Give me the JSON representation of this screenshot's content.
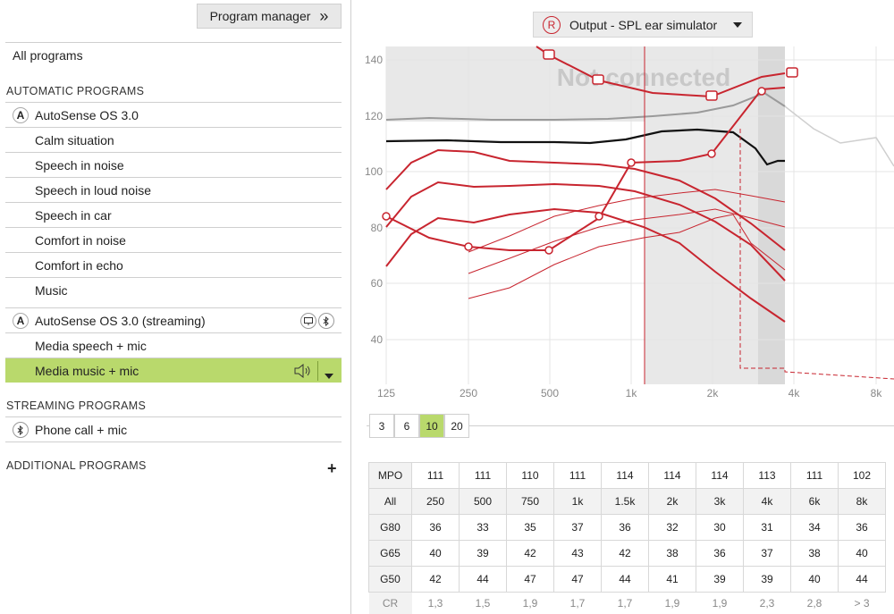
{
  "left": {
    "program_manager": "Program manager",
    "all_programs": "All programs",
    "auto_heading": "AUTOMATIC PROGRAMS",
    "autosense": "AutoSense OS 3.0",
    "badge_a": "A",
    "auto_items": [
      "Calm situation",
      "Speech in noise",
      "Speech in loud noise",
      "Speech in car",
      "Comfort in noise",
      "Comfort in echo",
      "Music"
    ],
    "autosense_streaming": "AutoSense OS 3.0 (streaming)",
    "streaming_items": [
      "Media speech + mic",
      "Media music + mic"
    ],
    "streaming_heading": "STREAMING PROGRAMS",
    "phone_call": "Phone call + mic",
    "additional_heading": "ADDITIONAL PROGRAMS",
    "plus": "+",
    "chevrons": "»"
  },
  "right": {
    "output_badge": "R",
    "output_label": "Output - SPL ear simulator",
    "watermark": "Not connected",
    "compression_options": [
      "3",
      "6",
      "10",
      "20"
    ],
    "compression_selected": "10"
  },
  "chart_data": {
    "type": "line",
    "x_ticks": [
      "125",
      "250",
      "500",
      "1k",
      "2k",
      "4k",
      "8k"
    ],
    "y_ticks": [
      "140",
      "120",
      "100",
      "80",
      "60",
      "40"
    ],
    "ylim": [
      30,
      145
    ],
    "xscale": "log",
    "grid": true,
    "colors": {
      "curve": "#c8252f",
      "mpo": "#111111",
      "ucl": "#9a9a9a",
      "shade": "#e6e6e6"
    }
  },
  "table": {
    "mpo": [
      "MPO",
      "111",
      "111",
      "110",
      "111",
      "114",
      "114",
      "114",
      "113",
      "111",
      "102"
    ],
    "all": [
      "All",
      "250",
      "500",
      "750",
      "1k",
      "1.5k",
      "2k",
      "3k",
      "4k",
      "6k",
      "8k"
    ],
    "g80": [
      "G80",
      "36",
      "33",
      "35",
      "37",
      "36",
      "32",
      "30",
      "31",
      "34",
      "36"
    ],
    "g65": [
      "G65",
      "40",
      "39",
      "42",
      "43",
      "42",
      "38",
      "36",
      "37",
      "38",
      "40"
    ],
    "g50": [
      "G50",
      "42",
      "44",
      "47",
      "47",
      "44",
      "41",
      "39",
      "39",
      "40",
      "44"
    ],
    "cr": [
      "CR",
      "1,3",
      "1,5",
      "1,9",
      "1,7",
      "1,7",
      "1,9",
      "1,9",
      "2,3",
      "2,8",
      "> 3"
    ]
  }
}
